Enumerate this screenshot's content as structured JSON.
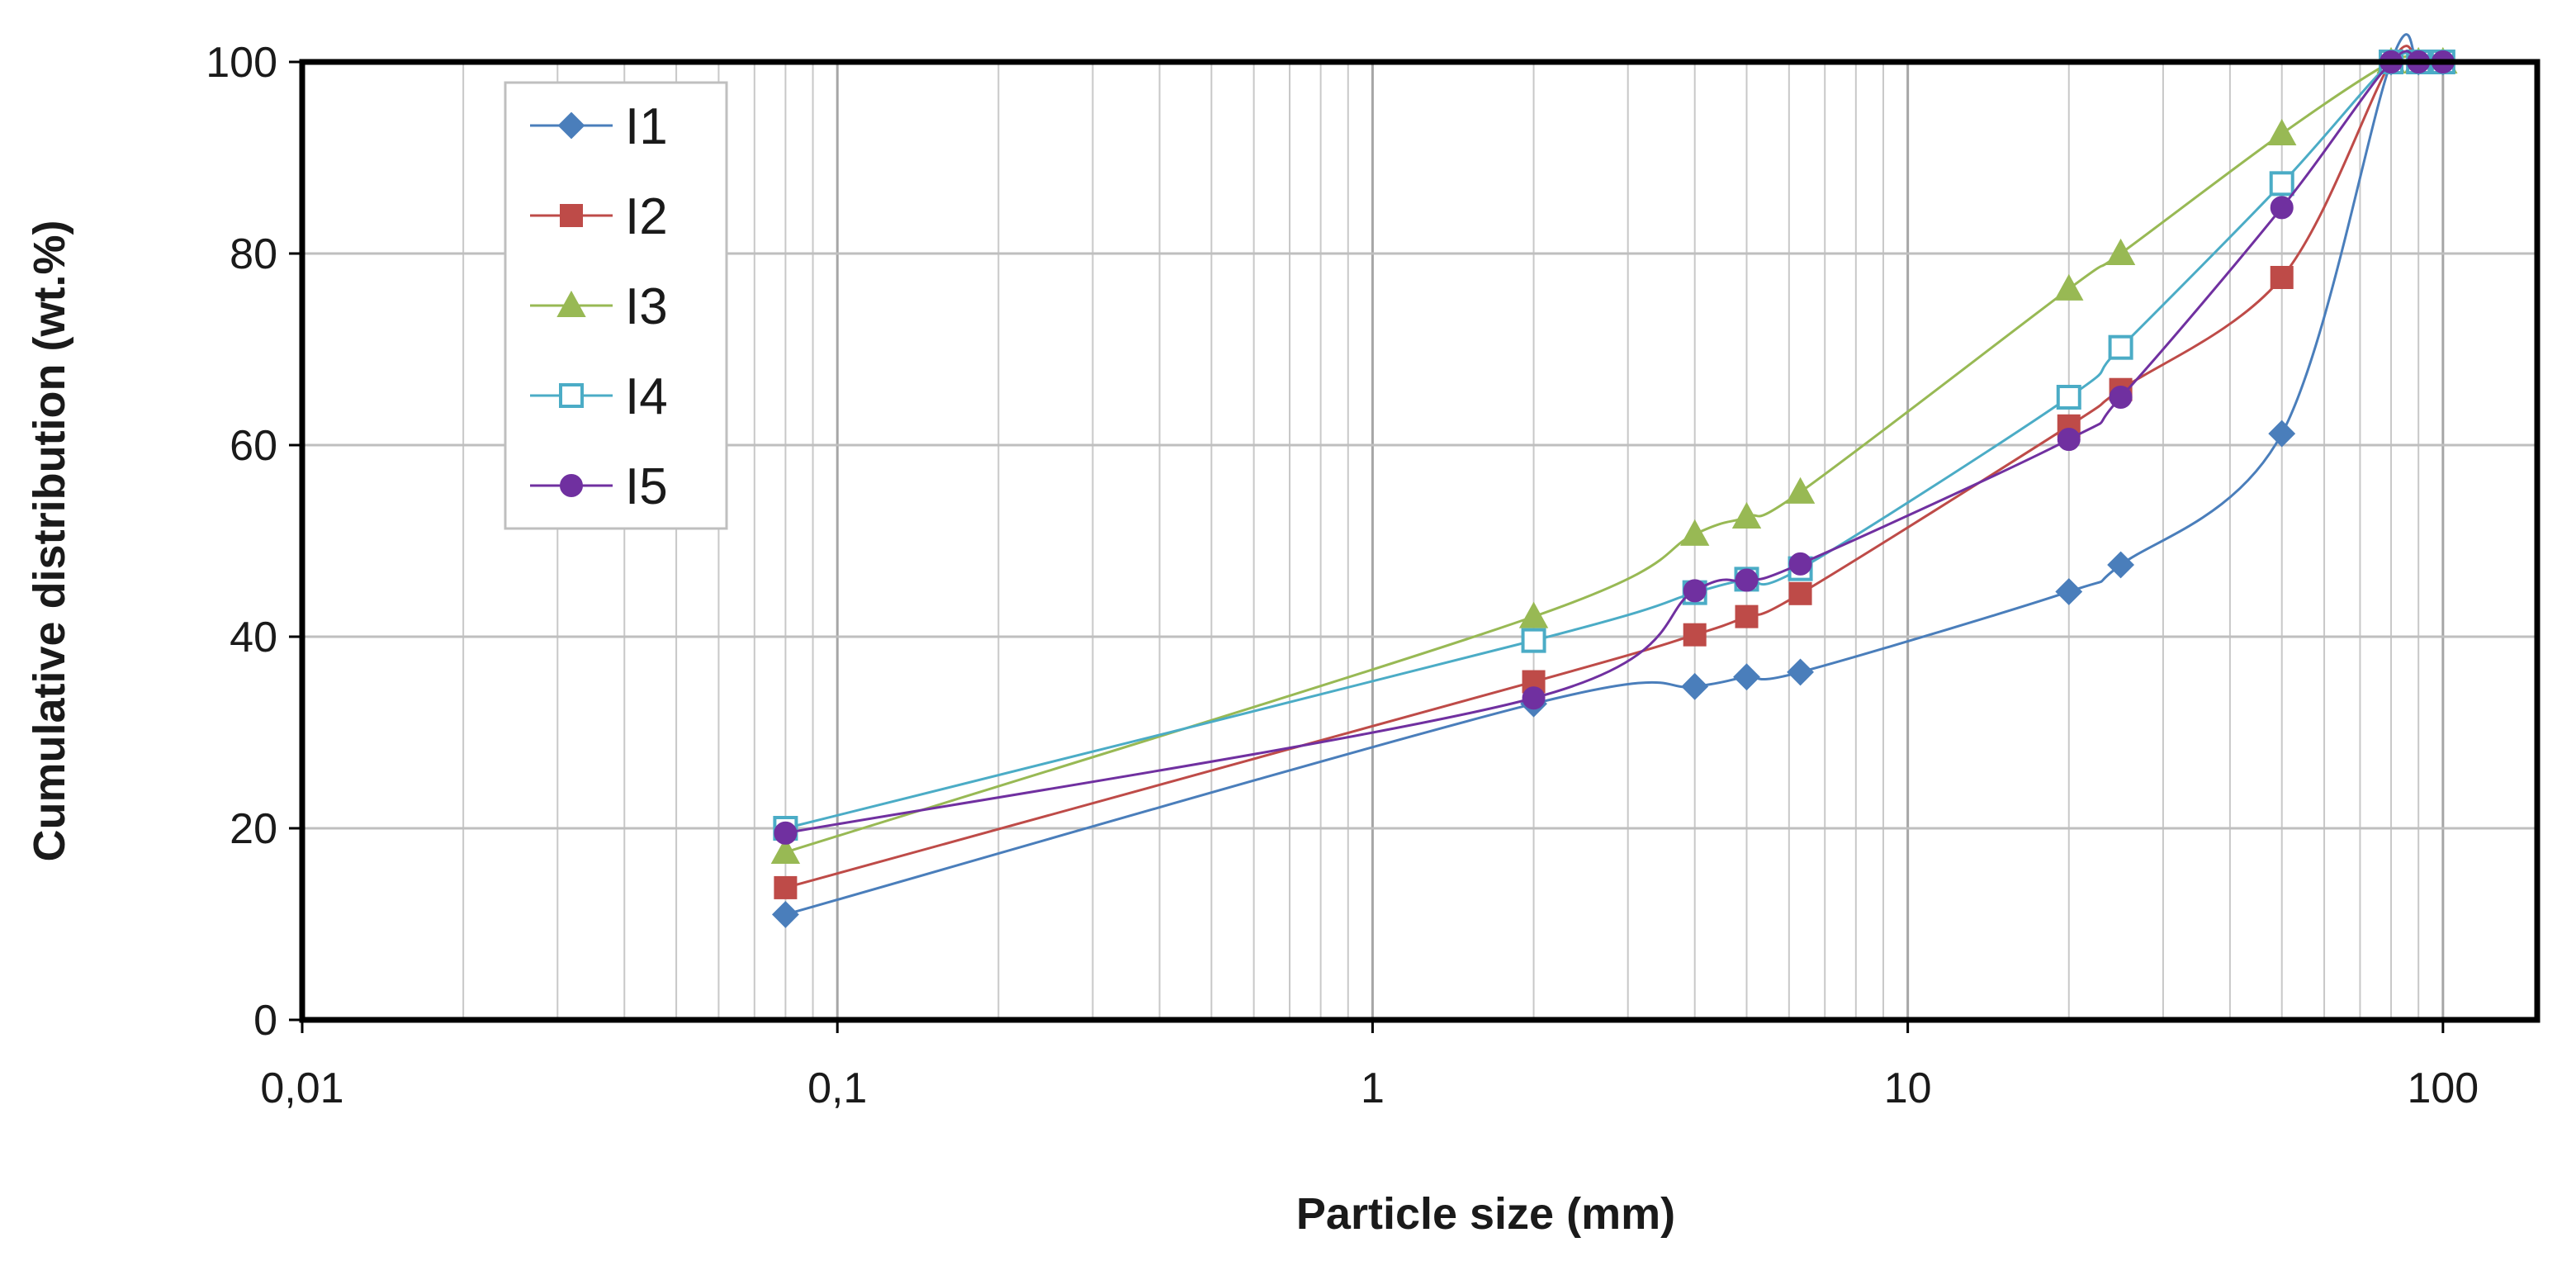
{
  "chart_data": {
    "type": "scatter",
    "xscale": "log",
    "xlim": [
      0.01,
      150
    ],
    "ylim": [
      0,
      100
    ],
    "xlabel": "Particle size (mm)",
    "ylabel": "Cumulative distribution (wt.%)",
    "xticks": [
      {
        "value": 0.01,
        "label": "0,01"
      },
      {
        "value": 0.1,
        "label": "0,1"
      },
      {
        "value": 1,
        "label": "1"
      },
      {
        "value": 10,
        "label": "10"
      },
      {
        "value": 100,
        "label": "100"
      }
    ],
    "yticks": [
      0,
      20,
      40,
      60,
      80,
      100
    ],
    "grid": true,
    "legend_position": "top-left",
    "series": [
      {
        "name": "I1",
        "color": "#4a7ebb",
        "marker": "diamond",
        "fill": true,
        "x": [
          0.08,
          2,
          4,
          5,
          6.3,
          20,
          25,
          50,
          80,
          90,
          100
        ],
        "y": [
          11,
          33,
          34.8,
          35.8,
          36.3,
          44.7,
          47.5,
          61.2,
          100,
          100,
          100
        ]
      },
      {
        "name": "I2",
        "color": "#be4b48",
        "marker": "square",
        "fill": true,
        "x": [
          0.08,
          2,
          4,
          5,
          6.3,
          20,
          25,
          50,
          80,
          90,
          100
        ],
        "y": [
          13.8,
          35.3,
          40.2,
          42.1,
          44.5,
          62,
          65.8,
          77.5,
          100,
          100,
          100
        ]
      },
      {
        "name": "I3",
        "color": "#98b954",
        "marker": "triangle",
        "fill": true,
        "x": [
          0.08,
          2,
          4,
          5,
          6.3,
          20,
          25,
          50,
          80,
          90,
          100
        ],
        "y": [
          17.5,
          42.1,
          50.7,
          52.5,
          55.1,
          76.3,
          80,
          92.5,
          100,
          100,
          100
        ]
      },
      {
        "name": "I4",
        "color": "#4bacc6",
        "marker": "square",
        "fill": false,
        "x": [
          0.08,
          2,
          4,
          5,
          6.3,
          20,
          25,
          50,
          80,
          90,
          100
        ],
        "y": [
          20,
          39.6,
          44.6,
          46,
          47.1,
          65,
          70.2,
          87.3,
          100,
          100,
          100
        ]
      },
      {
        "name": "I5",
        "color": "#7030a0",
        "marker": "circle",
        "fill": true,
        "x": [
          0.08,
          2,
          4,
          5,
          6.3,
          20,
          25,
          50,
          80,
          90,
          100
        ],
        "y": [
          19.5,
          33.6,
          44.8,
          45.9,
          47.6,
          60.6,
          65,
          84.8,
          100,
          100,
          100
        ]
      }
    ]
  }
}
